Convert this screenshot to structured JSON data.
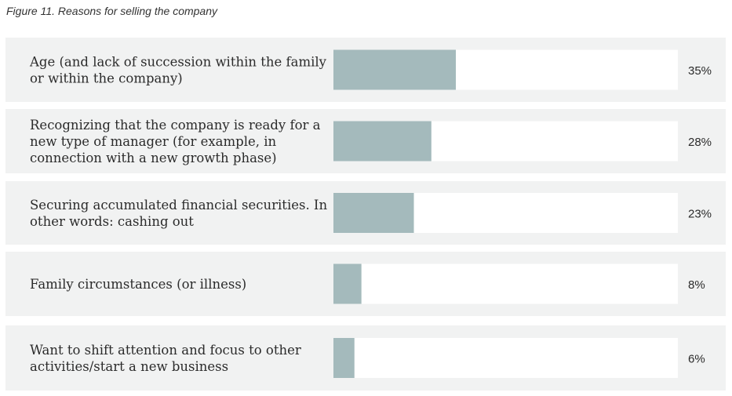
{
  "chart_data": {
    "type": "bar",
    "orientation": "horizontal",
    "title": "Figure 11. Reasons for selling the company",
    "value_suffix": "%",
    "xlim": [
      0,
      100
    ],
    "grid": false,
    "legend": "none",
    "categories": [
      [
        "Age (and lack of succession within the family",
        "or within the company)"
      ],
      [
        "Recognizing that the company is ready for a",
        "new type of manager (for example, in",
        "connection with a new growth phase)"
      ],
      [
        "Securing accumulated financial securities. In",
        "other words: cashing out"
      ],
      [
        "Family circumstances (or illness)"
      ],
      [
        "Want to shift attention and focus to other",
        "activities/start a new business"
      ]
    ],
    "values": [
      35,
      28,
      23,
      8,
      6
    ],
    "value_labels": [
      "35%",
      "28%",
      "23%",
      "8%",
      "6%"
    ],
    "colors": {
      "bar": "#a4babc",
      "track": "#ffffff",
      "row_background": "#f1f2f2",
      "text": "#2b2b2b"
    }
  }
}
